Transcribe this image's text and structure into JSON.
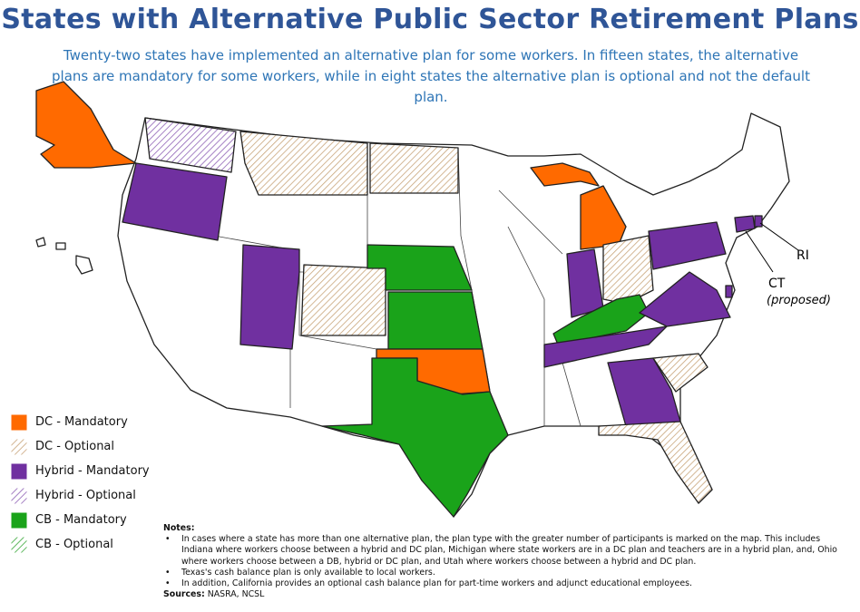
{
  "header": {
    "title": "States with Alternative Public Sector Retirement Plans",
    "subtitle": "Twenty-two states have implemented an alternative plan for some workers. In fifteen states, the alternative plans are mandatory for some workers, while in eight states the alternative plan is optional and not the default plan."
  },
  "legend": [
    {
      "label": "DC - Mandatory",
      "color": "#ff6a00",
      "pattern": "solid"
    },
    {
      "label": "DC - Optional",
      "color": "#c8a57a",
      "pattern": "hatch"
    },
    {
      "label": "Hybrid - Mandatory",
      "color": "#7030a0",
      "pattern": "solid"
    },
    {
      "label": "Hybrid - Optional",
      "color": "#8f62b5",
      "pattern": "hatch"
    },
    {
      "label": "CB - Mandatory",
      "color": "#1aa31a",
      "pattern": "solid"
    },
    {
      "label": "CB - Optional",
      "color": "#3aa83a",
      "pattern": "hatch"
    }
  ],
  "map_labels": {
    "ri": "RI",
    "ct": "CT",
    "ct_note": "(proposed)"
  },
  "notes": {
    "heading": "Notes:",
    "items": [
      "In cases where a state has more than one alternative plan, the plan type with the greater number of participants is marked on the map. This includes Indiana where workers choose between a hybrid and DC plan, Michigan where state workers are in a DC plan and teachers are in a hybrid plan, and, Ohio where workers choose between a DB, hybrid or DC plan, and  Utah where workers choose between a hybrid and DC plan.",
      "Texas's cash balance plan is only available to local workers.",
      "In addition, California provides an optional cash balance plan for part-time workers and adjunct educational employees."
    ],
    "sources_label": "Sources:",
    "sources": "NASRA, NCSL"
  }
}
